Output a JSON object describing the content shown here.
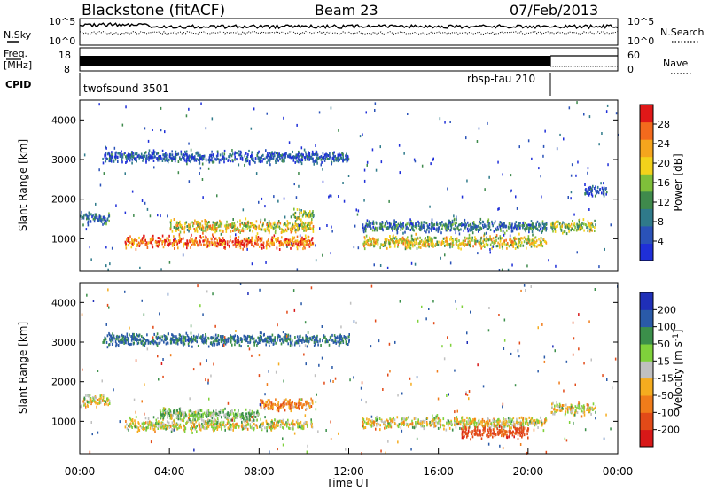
{
  "header": {
    "station": "Blackstone (fitACF)",
    "beam": "Beam 23",
    "date": "07/Feb/2013"
  },
  "top_panel": {
    "left_label": "N.Sky",
    "right_label": "N.Search",
    "tick_high": "10^5",
    "tick_low": "10^0"
  },
  "freq_panel": {
    "left_label_1": "Freq.",
    "left_label_2": "[MHz]",
    "left_tick_high": "18",
    "left_tick_low": "8",
    "right_label": "Nave",
    "right_tick_high": "60",
    "right_tick_low": "0"
  },
  "cpid": {
    "label": "CPID",
    "program_1": "twofsound 3501",
    "program_2": "rbsp-tau 210"
  },
  "x_axis": {
    "label": "Time UT",
    "ticks": [
      "00:00",
      "04:00",
      "08:00",
      "12:00",
      "16:00",
      "20:00",
      "00:00"
    ]
  },
  "colors": {
    "power_scale": [
      "#1f2fd8",
      "#2a52b8",
      "#2f7a8a",
      "#3f8a4c",
      "#7fbf3a",
      "#f3d21b",
      "#f5a51d",
      "#f36a1d",
      "#e01818"
    ],
    "velocity_scale": [
      "#d81818",
      "#e24a18",
      "#f07c1a",
      "#f5ac1f",
      "#c0c0c0",
      "#7fd13b",
      "#3b8f4a",
      "#2a5aa8",
      "#1f2fb8"
    ]
  },
  "chart_data": [
    {
      "type": "heatmap",
      "title": "",
      "xlabel": "",
      "ylabel": "Slant Range [km]",
      "xlim": [
        0,
        24
      ],
      "ylim": [
        180,
        4500
      ],
      "yticks": [
        "1000",
        "2000",
        "3000",
        "4000"
      ],
      "colorbar": {
        "label": "Power [dB]",
        "ticks": [
          "4",
          "8",
          "12",
          "16",
          "20",
          "24",
          "28"
        ],
        "range": [
          0,
          32
        ]
      },
      "features": [
        {
          "t_start": 0.0,
          "t_end": 1.3,
          "range_km": 1500,
          "level": 2
        },
        {
          "t_start": 2.0,
          "t_end": 10.4,
          "range_km": 900,
          "level": 7
        },
        {
          "t_start": 4.0,
          "t_end": 10.4,
          "range_km": 1300,
          "level": 5
        },
        {
          "t_start": 9.5,
          "t_end": 10.4,
          "range_km": 1600,
          "level": 4
        },
        {
          "t_start": 12.6,
          "t_end": 20.8,
          "range_km": 900,
          "level": 5
        },
        {
          "t_start": 12.6,
          "t_end": 20.8,
          "range_km": 1300,
          "level": 2
        },
        {
          "t_start": 21.0,
          "t_end": 23.0,
          "range_km": 1300,
          "level": 4
        },
        {
          "t_start": 22.5,
          "t_end": 23.5,
          "range_km": 2200,
          "level": 1
        },
        {
          "t_start": 1.0,
          "t_end": 12.0,
          "range_km": 3050,
          "level": 1
        }
      ]
    },
    {
      "type": "heatmap",
      "title": "",
      "xlabel": "Time UT",
      "ylabel": "Slant Range [km]",
      "xlim": [
        0,
        24
      ],
      "ylim": [
        180,
        4500
      ],
      "yticks": [
        "1000",
        "2000",
        "3000",
        "4000"
      ],
      "colorbar": {
        "label": "Velocity [m s^-1]",
        "ticks": [
          "-200",
          "-100",
          "-50",
          "-15",
          "15",
          "50",
          "100",
          "200"
        ],
        "range": [
          -250,
          250
        ]
      },
      "features": [
        {
          "t_start": 0.0,
          "t_end": 1.3,
          "range_km": 1500,
          "velocity": 0
        },
        {
          "t_start": 2.0,
          "t_end": 10.4,
          "range_km": 900,
          "velocity": 0
        },
        {
          "t_start": 3.5,
          "t_end": 8.0,
          "range_km": 1150,
          "velocity": 40
        },
        {
          "t_start": 8.0,
          "t_end": 10.4,
          "range_km": 1400,
          "velocity": -70
        },
        {
          "t_start": 12.6,
          "t_end": 20.8,
          "range_km": 950,
          "velocity": 0
        },
        {
          "t_start": 17.0,
          "t_end": 20.0,
          "range_km": 700,
          "velocity": -150
        },
        {
          "t_start": 21.0,
          "t_end": 23.0,
          "range_km": 1300,
          "velocity": 0
        },
        {
          "t_start": 1.0,
          "t_end": 12.0,
          "range_km": 3050,
          "velocity": 120
        }
      ]
    }
  ]
}
